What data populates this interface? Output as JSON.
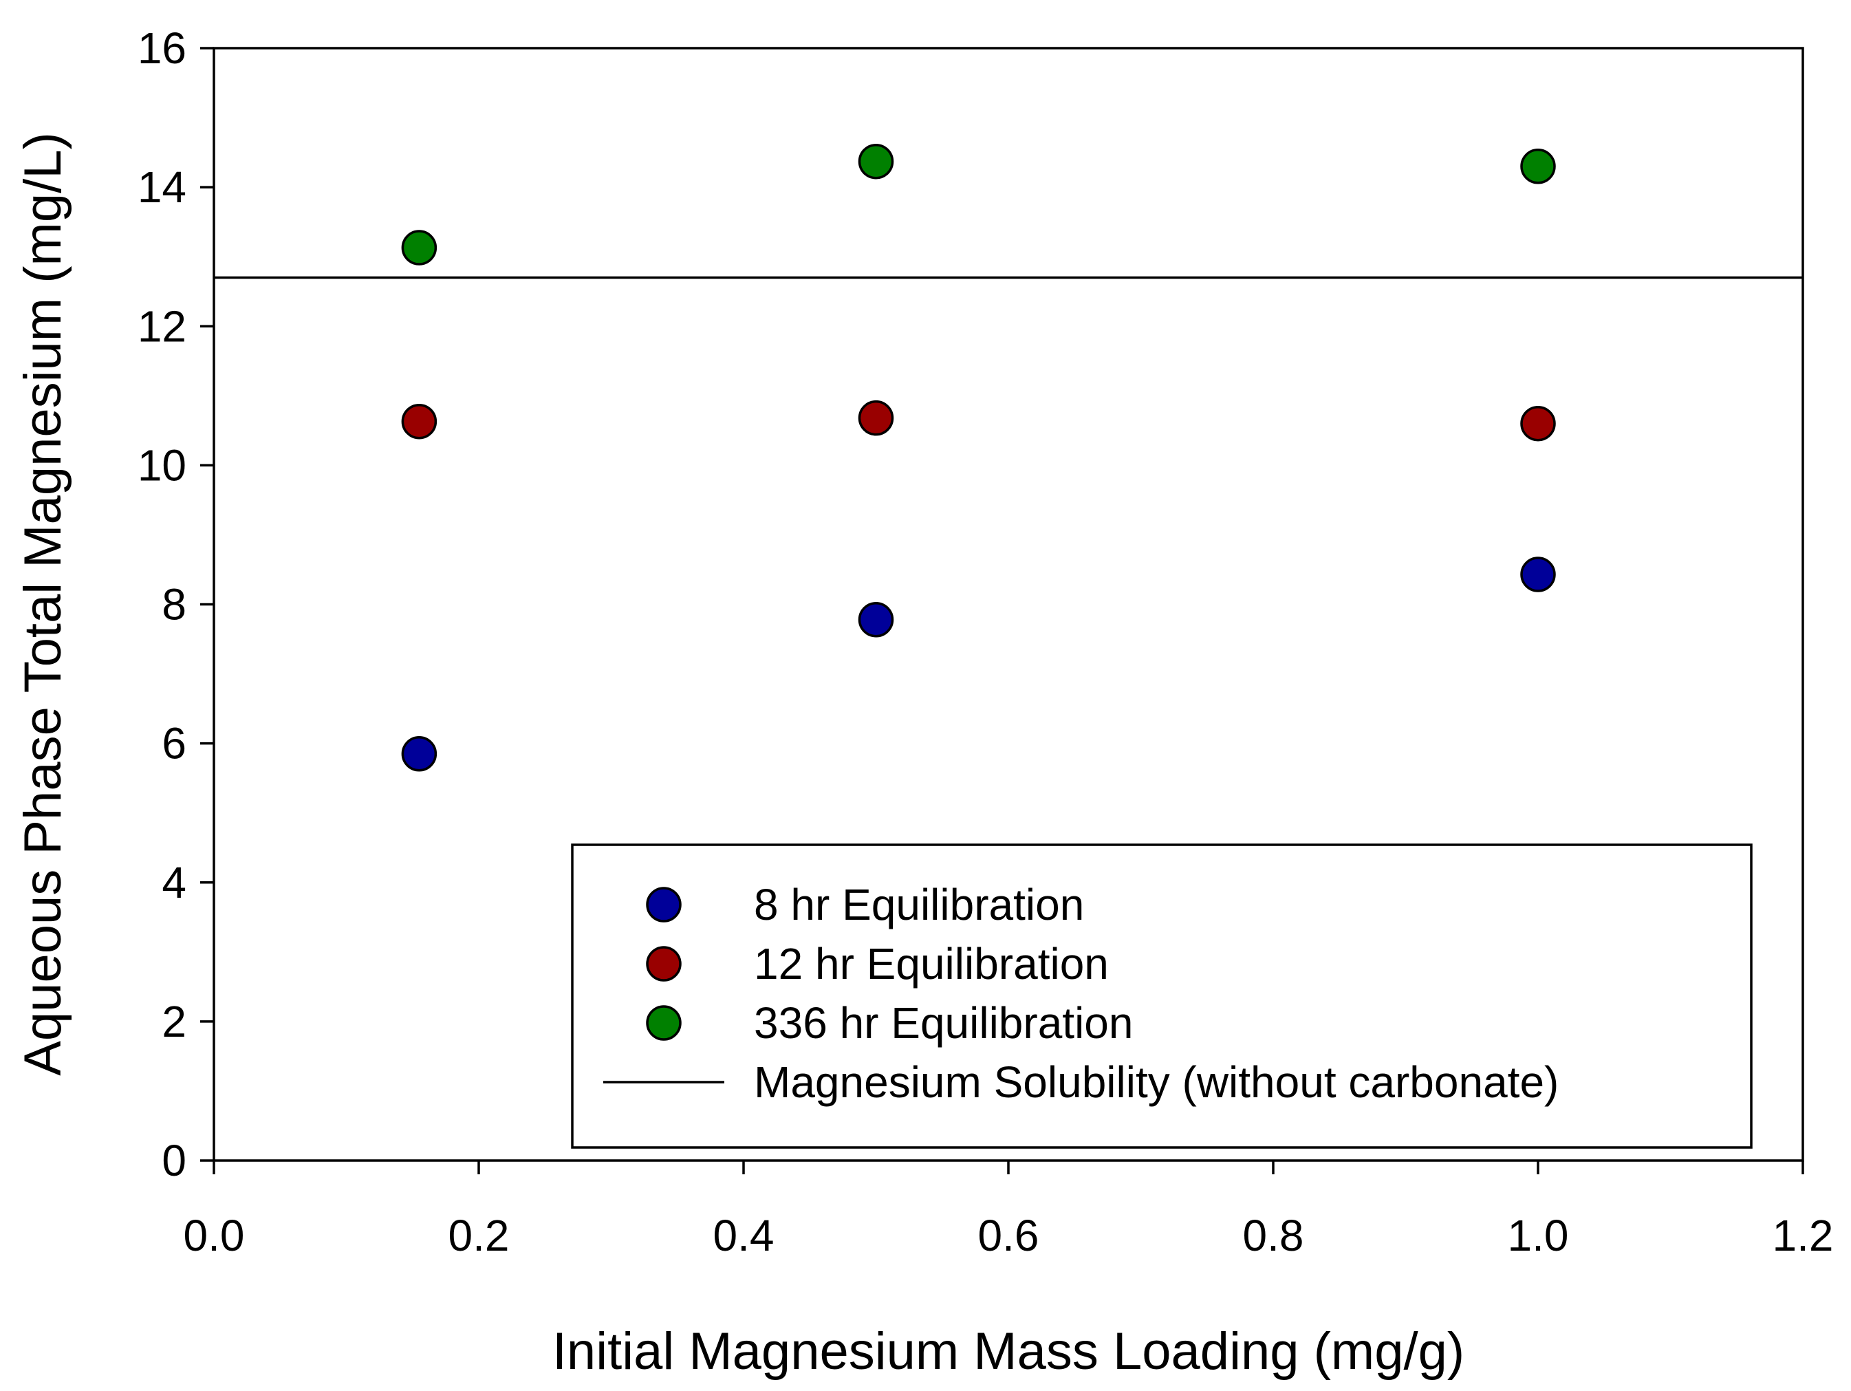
{
  "chart_data": {
    "type": "scatter",
    "title": "",
    "xlabel": "Initial Magnesium Mass Loading (mg/g)",
    "ylabel": "Aqueous Phase Total Magnesium (mg/L)",
    "xlim": [
      0.0,
      1.2
    ],
    "ylim": [
      0,
      16
    ],
    "xticks": [
      "0.0",
      "0.2",
      "0.4",
      "0.6",
      "0.8",
      "1.0",
      "1.2"
    ],
    "yticks": [
      "0",
      "2",
      "4",
      "6",
      "8",
      "10",
      "12",
      "14",
      "16"
    ],
    "grid": false,
    "legend_position": "bottom-right",
    "series": [
      {
        "name": "8 hr Equilibration",
        "color": "#000099",
        "x": [
          0.155,
          0.5,
          1.0
        ],
        "y": [
          5.85,
          7.78,
          8.43
        ]
      },
      {
        "name": "12 hr Equilibration",
        "color": "#990000",
        "x": [
          0.155,
          0.5,
          1.0
        ],
        "y": [
          10.63,
          10.68,
          10.6
        ]
      },
      {
        "name": "336 hr Equilibration",
        "color": "#008000",
        "x": [
          0.155,
          0.5,
          1.0
        ],
        "y": [
          13.13,
          14.37,
          14.3
        ]
      }
    ],
    "reference_lines": [
      {
        "name": "Magnesium Solubility (without carbonate)",
        "y": 12.7,
        "color": "#000000"
      }
    ]
  }
}
